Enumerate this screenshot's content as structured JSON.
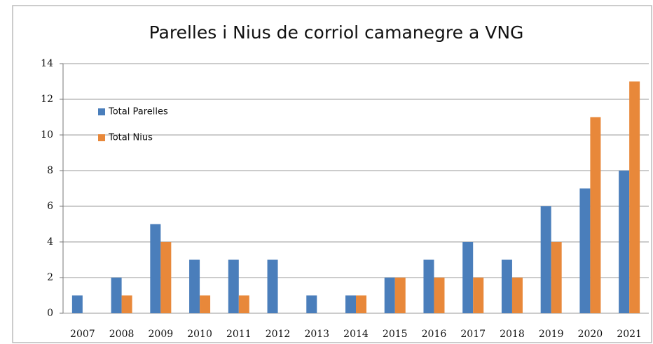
{
  "chart_data": {
    "type": "bar",
    "title": "Parelles i Nius de corriol camanegre a VNG",
    "categories": [
      "2007",
      "2008",
      "2009",
      "2010",
      "2011",
      "2012",
      "2013",
      "2014",
      "2015",
      "2016",
      "2017",
      "2018",
      "2019",
      "2020",
      "2021"
    ],
    "series": [
      {
        "name": "Total Parelles",
        "color": "#4a7ebb",
        "values": [
          1,
          2,
          5,
          3,
          3,
          3,
          1,
          1,
          2,
          3,
          4,
          3,
          6,
          7,
          8
        ]
      },
      {
        "name": "Total Nius",
        "color": "#e8883a",
        "values": [
          0,
          1,
          4,
          1,
          1,
          0,
          0,
          1,
          2,
          2,
          2,
          2,
          4,
          11,
          13
        ]
      }
    ],
    "ylim": [
      0,
      14
    ],
    "yticks": [
      0,
      2,
      4,
      6,
      8,
      10,
      12,
      14
    ],
    "grid": true,
    "legend": "upper left"
  }
}
